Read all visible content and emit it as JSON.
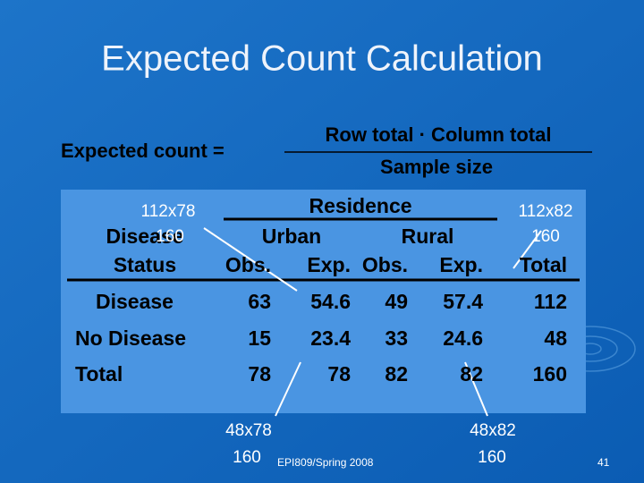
{
  "title": "Expected Count Calculation",
  "formula": {
    "lhs": "Expected count =",
    "numerator": "Row total · Column total",
    "denominator": "Sample size"
  },
  "table": {
    "group_header": "Residence",
    "row_label_header": [
      "Disease",
      "Status"
    ],
    "groups": [
      "Urban",
      "Rural"
    ],
    "columns": [
      "Obs.",
      "Exp.",
      "Obs.",
      "Exp.",
      "Total"
    ],
    "rows": [
      {
        "label": "Disease",
        "cells": [
          63,
          54.6,
          49,
          57.4,
          112
        ]
      },
      {
        "label": "No Disease",
        "cells": [
          15,
          23.4,
          33,
          24.6,
          48
        ]
      },
      {
        "label": "Total",
        "cells": [
          78,
          78,
          82,
          82,
          160
        ]
      }
    ]
  },
  "annotations": [
    {
      "top": "112x78",
      "bottom": "160"
    },
    {
      "top": "112x82",
      "bottom": "160"
    },
    {
      "top": "48x78",
      "bottom": "160"
    },
    {
      "top": "48x82",
      "bottom": "160"
    }
  ],
  "footer": "EPI809/Spring 2008",
  "page_number": 41
}
